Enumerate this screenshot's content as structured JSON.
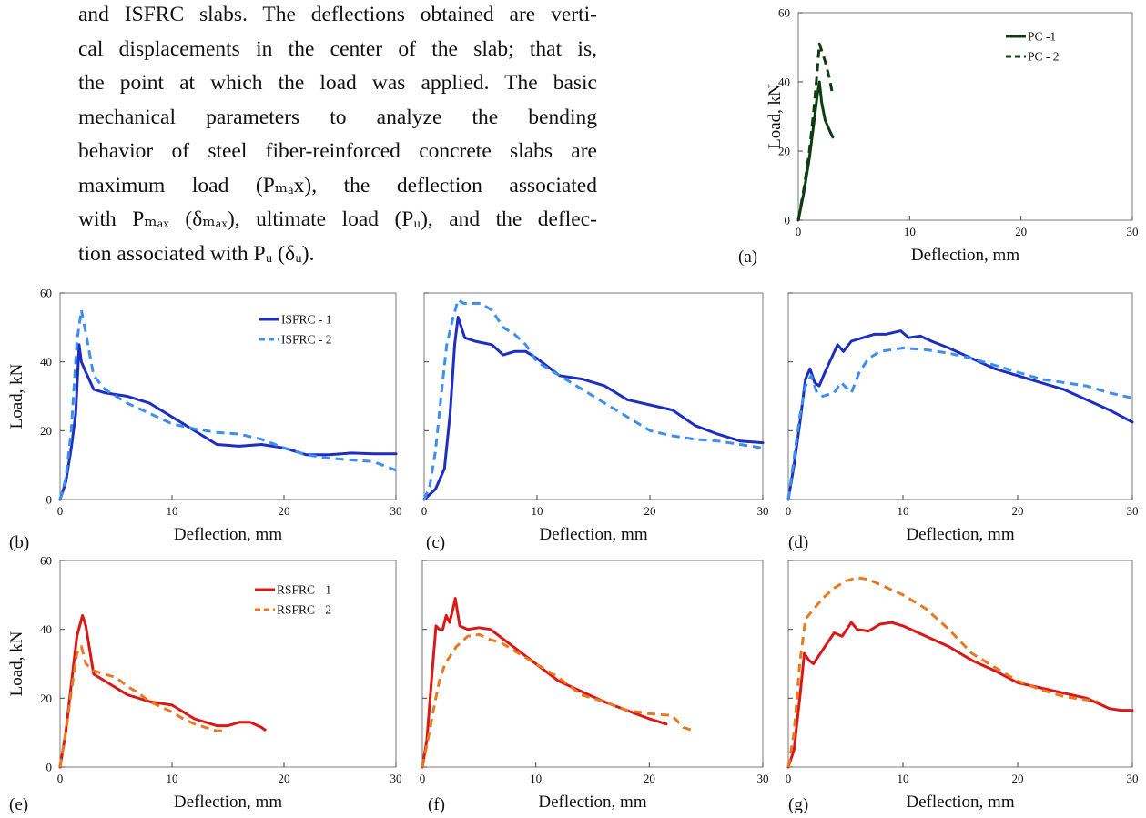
{
  "paragraph": {
    "lines": [
      "and ISFRC slabs. The deflections obtained are verti-",
      "cal displacements in the center of the slab; that is,",
      "the point at which the load was applied. The basic",
      "mechanical parameters to analyze the bending",
      "behavior of steel fiber-reinforced concrete slabs are",
      "maximum load (Pₘₐx), the deflection associated",
      "with Pₘₐₓ (δₘₐₓ), ultimate load (Pᵤ), and the deflec-",
      "tion associated with Pᵤ (δᵤ)."
    ]
  },
  "colors": {
    "pc": "#0f3d12",
    "isfrc1": "#1c2fbf",
    "isfrc2": "#3d8ef0",
    "rsfrc1": "#d91818",
    "rsfrc2": "#e9781f"
  },
  "chart_data": [
    {
      "panel": "(a)",
      "type": "line",
      "xlabel": "Deflection, mm",
      "ylabel": "Load, kN",
      "xlim": [
        0,
        30
      ],
      "ylim": [
        0,
        60
      ],
      "xticks": [
        "0",
        "10",
        "20",
        "30"
      ],
      "yticks": [
        "0",
        "20",
        "40",
        "60"
      ],
      "legend_position": "top-right",
      "series": [
        {
          "name": "PC -1",
          "style": "solid",
          "color": "#0f3d12",
          "x": [
            0,
            0.5,
            1.0,
            1.4,
            1.7,
            1.9,
            2.1,
            2.4,
            2.8,
            3.1
          ],
          "y": [
            0,
            8,
            18,
            28,
            36,
            40,
            34,
            29,
            26,
            24
          ]
        },
        {
          "name": "PC - 2",
          "style": "dashed",
          "color": "#0f3d12",
          "x": [
            0,
            0.5,
            1.0,
            1.4,
            1.7,
            1.9,
            2.1,
            2.4,
            2.8,
            3.1
          ],
          "y": [
            0,
            9,
            20,
            32,
            43,
            51,
            49,
            46,
            41,
            36
          ]
        }
      ]
    },
    {
      "panel": "(b)",
      "type": "line",
      "xlabel": "Deflection, mm",
      "ylabel": "Load, kN",
      "xlim": [
        0,
        30
      ],
      "ylim": [
        0,
        60
      ],
      "xticks": [
        "0",
        "10",
        "20",
        "30"
      ],
      "yticks": [
        "0",
        "20",
        "40",
        "60"
      ],
      "legend_position": "top-right",
      "series": [
        {
          "name": "ISFRC - 1",
          "style": "solid",
          "color": "#1c2fbf",
          "x": [
            0,
            0.5,
            1.0,
            1.4,
            1.7,
            1.9,
            2.3,
            3,
            4,
            6,
            8,
            10,
            12,
            14,
            16,
            18,
            20,
            22,
            24,
            26,
            28,
            30
          ],
          "y": [
            0,
            5,
            15,
            25,
            45,
            40,
            37,
            32,
            31,
            30,
            28,
            24,
            20,
            16,
            15.5,
            16,
            15,
            13,
            13,
            13.5,
            13.3,
            13.3
          ]
        },
        {
          "name": "ISFRC - 2",
          "style": "dashed",
          "color": "#3d8ef0",
          "x": [
            0,
            0.5,
            1.0,
            1.5,
            1.9,
            2.2,
            2.6,
            3,
            4,
            6,
            8,
            10,
            12,
            14,
            16,
            18,
            20,
            22,
            24,
            26,
            28,
            30
          ],
          "y": [
            0,
            6,
            20,
            46,
            55,
            50,
            43,
            36,
            32,
            28,
            25,
            22,
            20.5,
            19.5,
            19,
            17.5,
            15,
            13,
            12,
            11.5,
            11,
            8.5
          ]
        }
      ]
    },
    {
      "panel": "(c)",
      "type": "line",
      "xlabel": "Deflection, mm",
      "xlim": [
        0,
        30
      ],
      "ylim": [
        0,
        60
      ],
      "xticks": [
        "0",
        "10",
        "20",
        "30"
      ],
      "series": [
        {
          "name": "ISFRC - 1",
          "style": "solid",
          "color": "#1c2fbf",
          "x": [
            0,
            1,
            1.8,
            2.3,
            2.7,
            3.0,
            3.6,
            4.5,
            6,
            7,
            8,
            9,
            10,
            12,
            14,
            16,
            18,
            20,
            22,
            24,
            26,
            28,
            30
          ],
          "y": [
            0,
            3,
            9,
            25,
            45,
            53,
            47,
            46,
            45,
            42,
            43,
            43,
            41,
            36,
            35,
            33,
            29,
            27.5,
            26,
            21.5,
            19,
            17,
            16.5
          ]
        },
        {
          "name": "ISFRC - 2",
          "style": "dashed",
          "color": "#3d8ef0",
          "x": [
            0,
            0.5,
            1,
            1.5,
            2,
            2.5,
            3,
            3.5,
            5,
            6,
            7,
            8,
            9,
            10,
            12,
            14,
            16,
            18,
            20,
            22,
            24,
            26,
            28,
            30
          ],
          "y": [
            0,
            4,
            14,
            30,
            45,
            52,
            58,
            57,
            57,
            55,
            50,
            48,
            45,
            40,
            36,
            32,
            28,
            24,
            20,
            18.5,
            17.5,
            17,
            16,
            15
          ]
        }
      ]
    },
    {
      "panel": "(d)",
      "type": "line",
      "xlabel": "Deflection, mm",
      "xlim": [
        0,
        30
      ],
      "ylim": [
        0,
        60
      ],
      "xticks": [
        "0",
        "10",
        "20",
        "30"
      ],
      "series": [
        {
          "name": "ISFRC - 1",
          "style": "solid",
          "color": "#1c2fbf",
          "x": [
            0,
            0.5,
            1.0,
            1.5,
            1.9,
            2.3,
            2.7,
            3.2,
            4.3,
            4.8,
            5.5,
            6.5,
            7.5,
            8.5,
            9.8,
            10.5,
            11.5,
            12.5,
            14,
            16,
            18,
            20,
            22,
            24,
            26,
            28,
            30
          ],
          "y": [
            0,
            10,
            22,
            35,
            38,
            34,
            33,
            37,
            45,
            43,
            46,
            47,
            48,
            48,
            49,
            47,
            47.5,
            46,
            44,
            41,
            38,
            36,
            34,
            32,
            29,
            26,
            22.5
          ]
        },
        {
          "name": "ISFRC - 2",
          "style": "dashed",
          "color": "#3d8ef0",
          "x": [
            0,
            0.5,
            1,
            1.5,
            2,
            2.5,
            3,
            4,
            4.6,
            5.5,
            6.2,
            7,
            8,
            10,
            12,
            14,
            16,
            18,
            20,
            22,
            24,
            26,
            28,
            30
          ],
          "y": [
            0,
            12,
            24,
            33,
            36,
            31,
            30,
            31,
            34,
            31,
            37,
            41,
            43,
            44,
            43.5,
            42.5,
            41,
            39,
            37,
            35,
            34,
            33,
            31,
            29.5
          ]
        }
      ]
    },
    {
      "panel": "(e)",
      "type": "line",
      "xlabel": "Deflection, mm",
      "ylabel": "Load, kN",
      "xlim": [
        0,
        30
      ],
      "ylim": [
        0,
        60
      ],
      "xticks": [
        "0",
        "10",
        "20",
        "30"
      ],
      "yticks": [
        "0",
        "20",
        "40",
        "60"
      ],
      "legend_position": "top-right",
      "series": [
        {
          "name": "RSFRC - 1",
          "style": "solid",
          "color": "#d91818",
          "x": [
            0,
            0.5,
            1.0,
            1.5,
            2.0,
            2.3,
            2.7,
            3.0,
            4,
            6,
            8,
            10,
            12,
            14,
            15,
            16,
            17,
            18,
            18.3
          ],
          "y": [
            0,
            10,
            24,
            38,
            44,
            41,
            33,
            27,
            25,
            21,
            19,
            18,
            14,
            12,
            12,
            13,
            13,
            11.5,
            10.8
          ]
        },
        {
          "name": "RSFRC - 2",
          "style": "dashed",
          "color": "#e9781f",
          "x": [
            0,
            0.5,
            1.0,
            1.5,
            1.9,
            2.3,
            3,
            4,
            5,
            6,
            7,
            8,
            9,
            10,
            11,
            12,
            13,
            14,
            15
          ],
          "y": [
            0,
            10,
            22,
            33,
            35,
            30,
            28,
            27,
            26,
            23.5,
            21.5,
            19,
            17.5,
            16,
            14,
            12.5,
            11.5,
            10.5,
            10.5
          ]
        }
      ]
    },
    {
      "panel": "(f)",
      "type": "line",
      "xlabel": "Deflection, mm",
      "xlim": [
        0,
        30
      ],
      "ylim": [
        0,
        60
      ],
      "xticks": [
        "0",
        "10",
        "20",
        "30"
      ],
      "series": [
        {
          "name": "RSFRC - 1",
          "style": "solid",
          "color": "#d91818",
          "x": [
            0,
            0.4,
            0.8,
            1.2,
            1.5,
            1.8,
            2.1,
            2.4,
            2.7,
            2.9,
            3.3,
            4,
            5,
            6,
            8,
            10,
            12,
            14,
            16,
            18,
            20,
            21.5
          ],
          "y": [
            0,
            8,
            25,
            41,
            40,
            40,
            44,
            42,
            46,
            49,
            41,
            40,
            40.5,
            40,
            35,
            30,
            25,
            22,
            19,
            16.5,
            14,
            12.5
          ]
        },
        {
          "name": "RSFRC - 2",
          "style": "dashed",
          "color": "#e9781f",
          "x": [
            0,
            0.5,
            1,
            1.5,
            2,
            3,
            4,
            5,
            6,
            7,
            8,
            10,
            12,
            14,
            16,
            18,
            20,
            22,
            23,
            24
          ],
          "y": [
            0,
            8,
            17,
            25,
            30,
            35,
            38,
            38.5,
            37,
            36,
            34,
            30,
            26,
            21,
            19,
            16.5,
            15.5,
            15,
            11.5,
            10.5
          ]
        }
      ]
    },
    {
      "panel": "(g)",
      "type": "line",
      "xlabel": "Deflection, mm",
      "xlim": [
        0,
        30
      ],
      "ylim": [
        0,
        60
      ],
      "xticks": [
        "0",
        "10",
        "20",
        "30"
      ],
      "series": [
        {
          "name": "RSFRC - 1",
          "style": "solid",
          "color": "#d91818",
          "x": [
            0,
            0.5,
            1,
            1.4,
            1.8,
            2.2,
            3.2,
            4,
            4.7,
            5.5,
            6,
            7,
            8,
            9,
            10,
            12,
            14,
            16,
            18,
            20,
            22,
            24,
            26,
            28,
            29,
            30
          ],
          "y": [
            0,
            5,
            20,
            33,
            31,
            30,
            35,
            39,
            38,
            42,
            40,
            39.5,
            41.5,
            42,
            41,
            38,
            35,
            31,
            28,
            24.5,
            23,
            21.5,
            20,
            17,
            16.5,
            16.5
          ]
        },
        {
          "name": "RSFRC - 2",
          "style": "dashed",
          "color": "#e9781f",
          "x": [
            0,
            0.5,
            1,
            1.5,
            2,
            3,
            4,
            5,
            6,
            7,
            8,
            10,
            12,
            14,
            16,
            18,
            20,
            22,
            24,
            26,
            27
          ],
          "y": [
            0,
            10,
            30,
            43,
            45,
            49,
            52,
            54,
            55,
            54.5,
            53,
            50,
            46,
            40,
            33,
            29,
            25,
            22.5,
            20.5,
            19.5,
            19
          ]
        }
      ]
    }
  ]
}
